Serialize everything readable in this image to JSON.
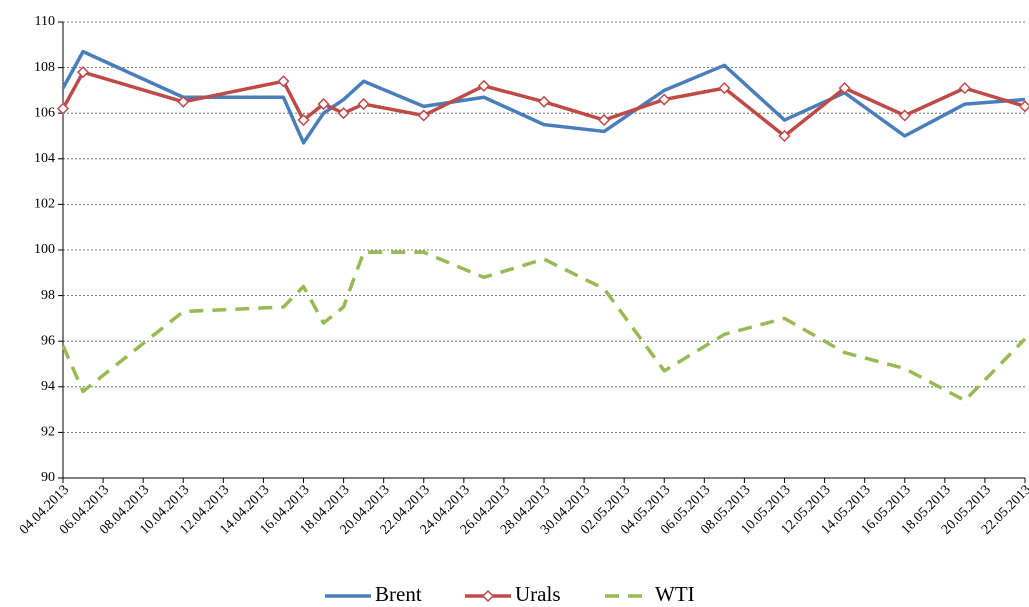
{
  "chart_data": {
    "type": "line",
    "x": [
      "04.04.2013",
      "05.04.2013",
      "10.04.2013",
      "15.04.2013",
      "16.04.2013",
      "17.04.2013",
      "18.04.2013",
      "19.04.2013",
      "22.04.2013",
      "25.04.2013",
      "28.04.2013",
      "01.05.2013",
      "04.05.2013",
      "07.05.2013",
      "10.05.2013",
      "13.05.2013",
      "16.05.2013",
      "19.05.2013",
      "22.05.2013"
    ],
    "series": [
      {
        "name": "Brent",
        "color": "#4a7ebb",
        "values": [
          107.1,
          108.7,
          106.7,
          106.7,
          104.7,
          106.0,
          106.6,
          107.4,
          106.3,
          106.7,
          105.5,
          105.2,
          107.0,
          108.1,
          105.7,
          106.9,
          105.0,
          106.4,
          106.6
        ]
      },
      {
        "name": "Urals",
        "color": "#be4b48",
        "marker": "diamond",
        "values": [
          106.2,
          107.8,
          106.5,
          107.4,
          105.7,
          106.4,
          106.0,
          106.4,
          105.9,
          107.2,
          106.5,
          105.7,
          106.6,
          107.1,
          105.0,
          107.1,
          105.9,
          107.1,
          106.3
        ]
      },
      {
        "name": "WTI",
        "color": "#98b954",
        "dashed": true,
        "values": [
          95.8,
          93.8,
          97.3,
          97.5,
          98.4,
          96.8,
          97.5,
          99.9,
          99.9,
          98.8,
          99.6,
          98.3,
          94.7,
          96.3,
          97.0,
          95.5,
          94.8,
          93.4,
          96.1
        ]
      }
    ],
    "xlim": [
      "04.04.2013",
      "22.05.2013"
    ],
    "xticks": [
      "04.04.2013",
      "06.04.2013",
      "08.04.2013",
      "10.04.2013",
      "12.04.2013",
      "14.04.2013",
      "16.04.2013",
      "18.04.2013",
      "20.04.2013",
      "22.04.2013",
      "24.04.2013",
      "26.04.2013",
      "28.04.2013",
      "30.04.2013",
      "02.05.2013",
      "04.05.2013",
      "06.05.2013",
      "08.05.2013",
      "10.05.2013",
      "12.05.2013",
      "14.05.2013",
      "16.05.2013",
      "18.05.2013",
      "20.05.2013",
      "22.05.2013"
    ],
    "ylim": [
      90,
      110
    ],
    "yticks": [
      90,
      92,
      94,
      96,
      98,
      100,
      102,
      104,
      106,
      108,
      110
    ],
    "grid": true,
    "legend": "bottom"
  }
}
